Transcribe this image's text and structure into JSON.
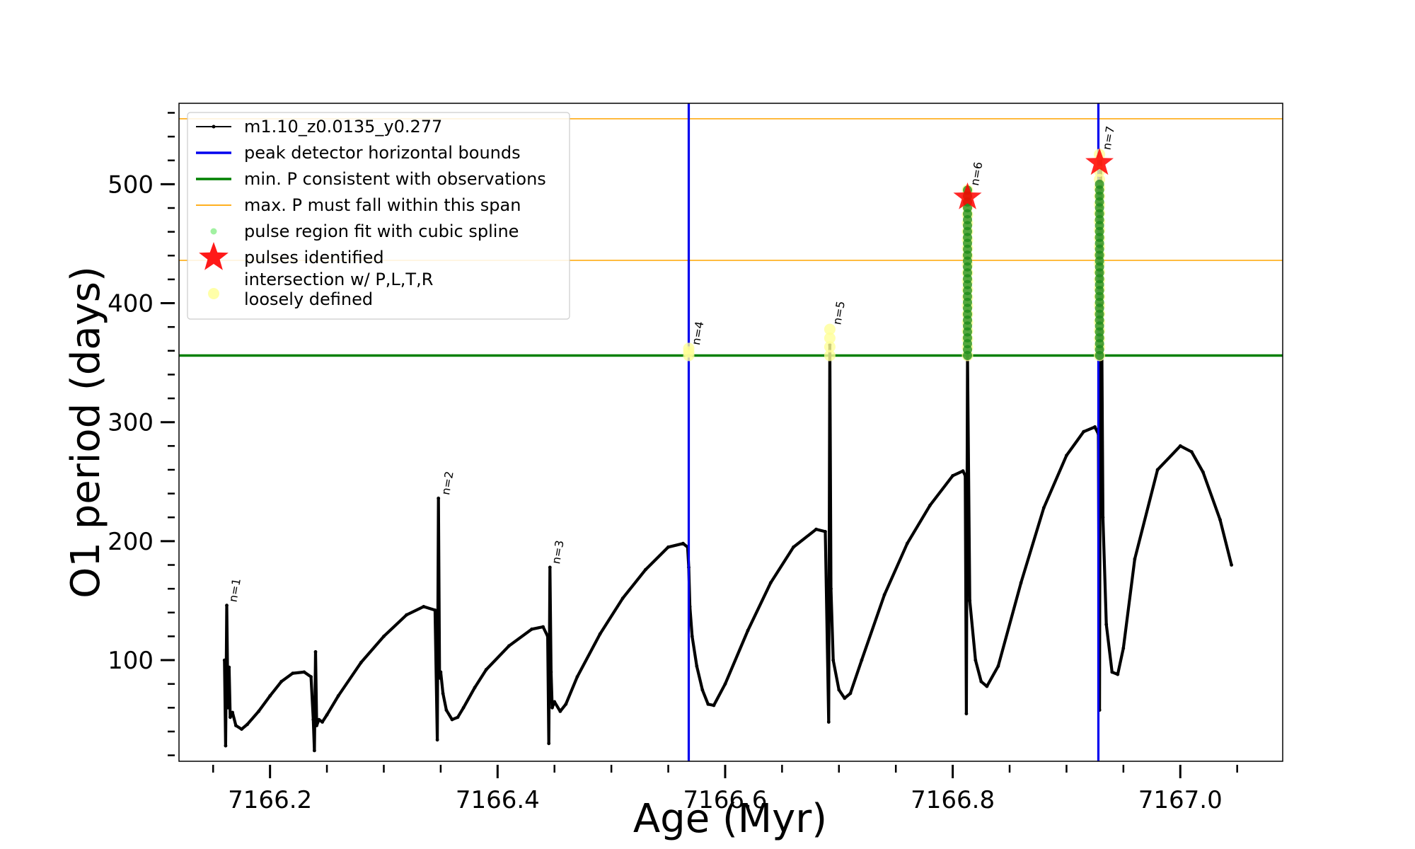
{
  "chart_data": {
    "type": "line",
    "title": "",
    "xlabel": "Age (Myr)",
    "ylabel": "O1 period (days)",
    "xlim": [
      7166.12,
      7167.09
    ],
    "ylim": [
      15,
      568
    ],
    "x_ticks": [
      7166.2,
      7166.4,
      7166.6,
      7166.8,
      7167.0
    ],
    "x_tick_labels": [
      "7166.2",
      "7166.4",
      "7166.6",
      "7166.8",
      "7167.0"
    ],
    "y_ticks": [
      100,
      200,
      300,
      400,
      500
    ],
    "y_tick_labels": [
      "100",
      "200",
      "300",
      "400",
      "500"
    ],
    "grid": false,
    "legend": {
      "placement": "top-left",
      "entries": [
        {
          "label": "m1.10_z0.0135_y0.277",
          "marker": "small-dot-line",
          "color": "#000000"
        },
        {
          "label": "peak detector horizontal bounds",
          "marker": "line",
          "color": "#0000ee"
        },
        {
          "label": "min. P consistent with observations",
          "marker": "line",
          "color": "#008000"
        },
        {
          "label": "max. P must fall within this span",
          "marker": "line",
          "color": "#ffa500"
        },
        {
          "label": "pulse region fit with cubic spline",
          "marker": "dot",
          "color": "#90ee90"
        },
        {
          "label": "pulses identified",
          "marker": "star",
          "color": "#ff0000"
        },
        {
          "label": "intersection w/ P,L,T,R",
          "label2": "loosely defined",
          "marker": "dot",
          "color": "#ffff99"
        }
      ]
    },
    "reference_lines": {
      "vertical_blue": [
        7166.568,
        7166.928
      ],
      "horizontal_green": 356,
      "horizontal_orange": [
        436,
        555
      ]
    },
    "series": [
      {
        "name": "m1.10_z0.0135_y0.277",
        "color": "#000000",
        "x": [
          7166.16,
          7166.161,
          7166.162,
          7166.163,
          7166.164,
          7166.165,
          7166.167,
          7166.17,
          7166.175,
          7166.18,
          7166.19,
          7166.2,
          7166.21,
          7166.22,
          7166.23,
          7166.236,
          7166.238,
          7166.239,
          7166.24,
          7166.241,
          7166.243,
          7166.246,
          7166.25,
          7166.26,
          7166.28,
          7166.3,
          7166.32,
          7166.335,
          7166.345,
          7166.347,
          7166.348,
          7166.349,
          7166.35,
          7166.352,
          7166.355,
          7166.36,
          7166.365,
          7166.37,
          7166.38,
          7166.39,
          7166.41,
          7166.43,
          7166.44,
          7166.444,
          7166.445,
          7166.446,
          7166.447,
          7166.448,
          7166.45,
          7166.455,
          7166.46,
          7166.47,
          7166.49,
          7166.51,
          7166.53,
          7166.55,
          7166.563,
          7166.567,
          7166.568,
          7166.569,
          7166.571,
          7166.575,
          7166.58,
          7166.585,
          7166.59,
          7166.6,
          7166.62,
          7166.64,
          7166.66,
          7166.68,
          7166.688,
          7166.691,
          7166.692,
          7166.693,
          7166.695,
          7166.7,
          7166.705,
          7166.71,
          7166.72,
          7166.74,
          7166.76,
          7166.78,
          7166.8,
          7166.809,
          7166.811,
          7166.812,
          7166.813,
          7166.815,
          7166.82,
          7166.825,
          7166.83,
          7166.84,
          7166.86,
          7166.88,
          7166.9,
          7166.915,
          7166.925,
          7166.928,
          7166.929,
          7166.93,
          7166.932,
          7166.935,
          7166.94,
          7166.945,
          7166.95,
          7166.96,
          7166.98,
          7167.0,
          7167.01,
          7167.02,
          7167.035,
          7167.045
        ],
        "y": [
          100,
          28,
          146,
          60,
          94,
          52,
          56,
          45,
          42,
          46,
          57,
          70,
          82,
          89,
          90,
          86,
          50,
          24,
          107,
          45,
          50,
          48,
          54,
          70,
          98,
          120,
          138,
          145,
          142,
          33,
          236,
          85,
          90,
          72,
          58,
          50,
          52,
          60,
          77,
          92,
          112,
          126,
          128,
          120,
          30,
          178,
          90,
          60,
          65,
          57,
          63,
          86,
          122,
          152,
          176,
          195,
          198,
          195,
          178,
          145,
          120,
          95,
          75,
          63,
          62,
          80,
          125,
          165,
          195,
          210,
          208,
          48,
          365,
          160,
          100,
          75,
          68,
          72,
          100,
          155,
          198,
          230,
          255,
          259,
          255,
          55,
          355,
          150,
          100,
          82,
          78,
          95,
          165,
          228,
          272,
          292,
          296,
          290,
          58,
          520,
          220,
          130,
          90,
          88,
          110,
          185,
          260,
          280,
          275,
          258,
          218,
          180
        ]
      }
    ],
    "spline_region_fits": [
      {
        "x": 7166.813,
        "y_min": 356,
        "y_max": 495
      },
      {
        "x": 7166.929,
        "y_min": 356,
        "y_max": 500
      }
    ],
    "pulses_identified": [
      {
        "x": 7166.813,
        "y": 489
      },
      {
        "x": 7166.929,
        "y": 518
      }
    ],
    "intersection_regions": [
      {
        "x": 7166.568,
        "y_min": 356,
        "y_max": 362
      },
      {
        "x": 7166.692,
        "y_min": 356,
        "y_max": 378
      },
      {
        "x": 7166.813,
        "y_min": 356,
        "y_max": 495
      },
      {
        "x": 7166.929,
        "y_min": 356,
        "y_max": 525
      }
    ],
    "annotations": [
      {
        "text": "n=1",
        "x": 7166.163,
        "y": 146
      },
      {
        "text": "n=2",
        "x": 7166.35,
        "y": 236
      },
      {
        "text": "n=3",
        "x": 7166.447,
        "y": 178
      },
      {
        "text": "n=4",
        "x": 7166.57,
        "y": 362
      },
      {
        "text": "n=5",
        "x": 7166.694,
        "y": 379
      },
      {
        "text": "n=6",
        "x": 7166.815,
        "y": 496
      },
      {
        "text": "n=7",
        "x": 7166.931,
        "y": 526
      }
    ]
  }
}
